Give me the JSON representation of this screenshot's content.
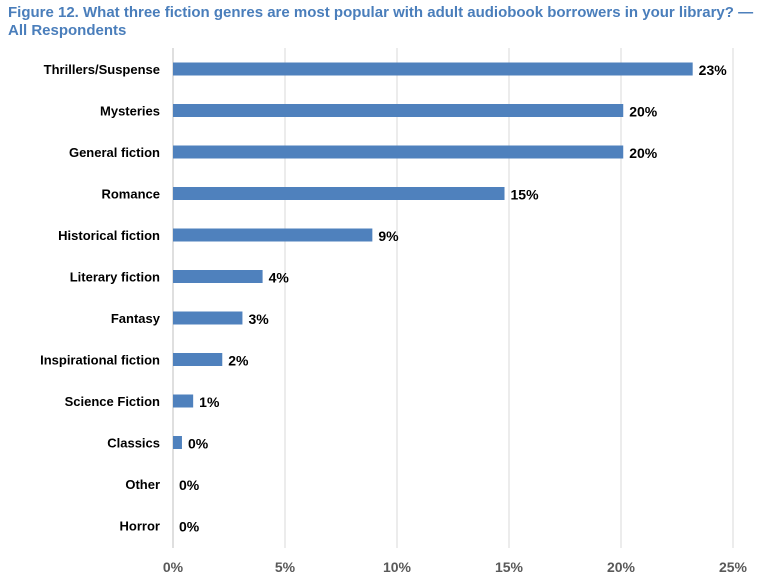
{
  "chart_data": {
    "type": "bar",
    "orientation": "horizontal",
    "title": "Figure 12. What three fiction genres are most popular with adult audiobook borrowers in your library? —All Respondents",
    "categories": [
      "Thrillers/Suspense",
      "Mysteries",
      "General fiction",
      "Romance",
      "Historical fiction",
      "Literary fiction",
      "Fantasy",
      "Inspirational fiction",
      "Science Fiction",
      "Classics",
      "Other",
      "Horror"
    ],
    "values": [
      23.2,
      20.1,
      20.1,
      14.8,
      8.9,
      4.0,
      3.1,
      2.2,
      0.9,
      0.4,
      0,
      0
    ],
    "value_labels": [
      "23%",
      "20%",
      "20%",
      "15%",
      "9%",
      "4%",
      "3%",
      "2%",
      "1%",
      "0%",
      "0%",
      "0%"
    ],
    "xlim": [
      0,
      25
    ],
    "x_ticks": [
      0,
      5,
      10,
      15,
      20,
      25
    ],
    "x_tick_labels": [
      "0%",
      "5%",
      "10%",
      "15%",
      "20%",
      "25%"
    ],
    "xlabel": "",
    "ylabel": "",
    "grid": "vertical",
    "bar_color": "#4f81bd",
    "gridline_color": "#d9d9d9",
    "title_color": "#4a7ebb"
  }
}
